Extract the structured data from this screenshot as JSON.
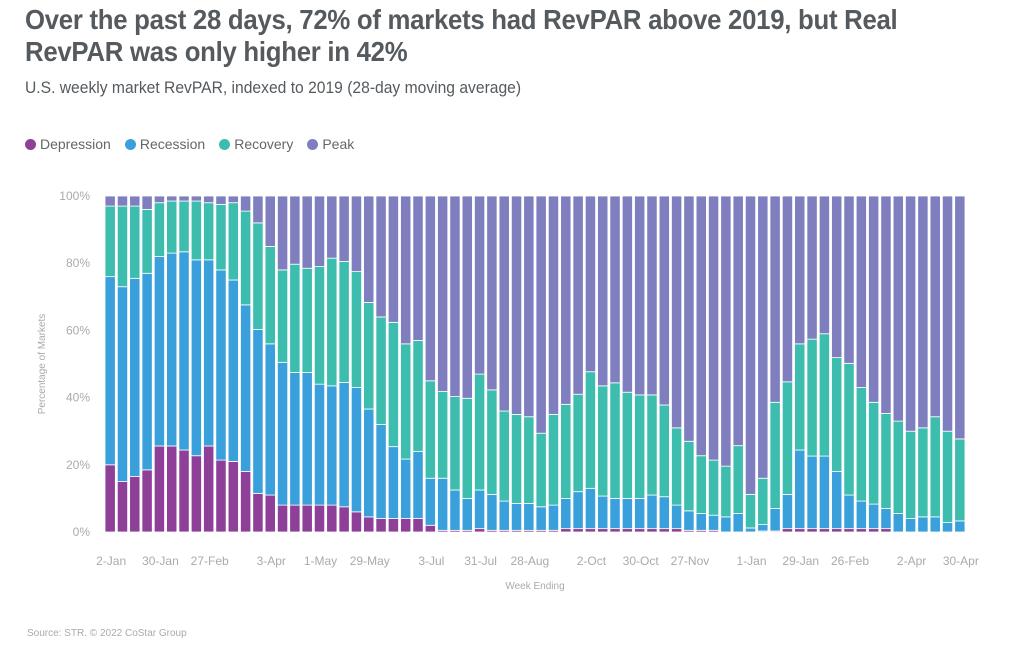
{
  "chart_data": {
    "type": "bar",
    "stacked": true,
    "title": "Over the past 28 days, 72% of markets had RevPAR above 2019, but Real RevPAR was only higher in 42%",
    "subtitle": "U.S. weekly market RevPAR, indexed to 2019 (28-day moving average)",
    "xlabel": "Week Ending",
    "ylabel": "Percentage of Markets",
    "ylim": [
      0,
      100
    ],
    "yticks": [
      "0%",
      "20%",
      "40%",
      "60%",
      "80%",
      "100%"
    ],
    "legend_position": "top-left",
    "source": "Source: STR. © 2022 CoStar Group",
    "categories": [
      "2-Jan",
      "9-Jan",
      "16-Jan",
      "23-Jan",
      "30-Jan",
      "6-Feb",
      "13-Feb",
      "20-Feb",
      "27-Feb",
      "6-Mar",
      "13-Mar",
      "20-Mar",
      "27-Mar",
      "3-Apr",
      "10-Apr",
      "17-Apr",
      "24-Apr",
      "1-May",
      "8-May",
      "15-May",
      "22-May",
      "29-May",
      "5-Jun",
      "12-Jun",
      "19-Jun",
      "26-Jun",
      "3-Jul",
      "10-Jul",
      "17-Jul",
      "24-Jul",
      "31-Jul",
      "7-Aug",
      "14-Aug",
      "21-Aug",
      "28-Aug",
      "4-Sep",
      "11-Sep",
      "18-Sep",
      "25-Sep",
      "2-Oct",
      "9-Oct",
      "16-Oct",
      "23-Oct",
      "30-Oct",
      "6-Nov",
      "13-Nov",
      "20-Nov",
      "27-Nov",
      "4-Dec",
      "11-Dec",
      "18-Dec",
      "25-Dec",
      "1-Jan",
      "8-Jan",
      "15-Jan",
      "22-Jan",
      "29-Jan",
      "5-Feb",
      "12-Feb",
      "19-Feb",
      "26-Feb",
      "5-Mar",
      "12-Mar",
      "19-Mar",
      "26-Mar",
      "2-Apr",
      "9-Apr",
      "16-Apr",
      "23-Apr",
      "30-Apr"
    ],
    "xtick_labels": [
      "2-Jan",
      "30-Jan",
      "27-Feb",
      "3-Apr",
      "1-May",
      "29-May",
      "3-Jul",
      "31-Jul",
      "28-Aug",
      "2-Oct",
      "30-Oct",
      "27-Nov",
      "1-Jan",
      "29-Jan",
      "26-Feb",
      "2-Apr",
      "30-Apr"
    ],
    "series": [
      {
        "name": "Depression",
        "color": "#8e3f97",
        "values": [
          20,
          15,
          16.5,
          18.5,
          25.6,
          25.6,
          24.4,
          22.7,
          25.6,
          21.4,
          21,
          18,
          11.5,
          11,
          8,
          8,
          8,
          8,
          8,
          7.5,
          6,
          4.5,
          4,
          4,
          4,
          4,
          2,
          0.5,
          0.5,
          0.5,
          1,
          0.5,
          0.5,
          0.5,
          0.5,
          0.5,
          0.5,
          1,
          1,
          1,
          1,
          1,
          1,
          1,
          1,
          1,
          1,
          0.5,
          0.5,
          0.5,
          0,
          0,
          0,
          0.3,
          0.3,
          1,
          1,
          1,
          1,
          1,
          1,
          1,
          1,
          1,
          0,
          0,
          0,
          0,
          0,
          0
        ]
      },
      {
        "name": "Recession",
        "color": "#3aa0dc",
        "values": [
          56,
          58,
          59,
          58.5,
          56.4,
          57.4,
          59,
          58.3,
          55.4,
          56.6,
          54,
          49.6,
          48.8,
          45,
          42.5,
          39.5,
          39.5,
          36,
          35.5,
          37,
          37,
          32.1,
          28,
          21.4,
          17.7,
          20,
          14,
          15.5,
          12,
          9.5,
          11.5,
          10.7,
          8.7,
          8,
          8,
          7,
          7.5,
          9,
          11,
          12,
          9.7,
          9,
          9,
          9,
          10,
          9.5,
          7,
          5.8,
          5,
          4.5,
          4.5,
          5.5,
          1.2,
          1.9,
          6.7,
          10.2,
          23.4,
          21.6,
          21.6,
          17,
          10,
          8.2,
          7.3,
          6,
          5.5,
          4,
          4.5,
          4.5,
          2.8,
          3.3
        ]
      },
      {
        "name": "Recovery",
        "color": "#3dbdae",
        "values": [
          21,
          24,
          21.5,
          19,
          16,
          15.5,
          15.1,
          17.5,
          17,
          19.5,
          23,
          27.9,
          31.7,
          29,
          27.5,
          32.2,
          31,
          35,
          38,
          36,
          34.5,
          31.7,
          32,
          37,
          34.3,
          33,
          29,
          25.8,
          27.8,
          29.8,
          34.5,
          31.1,
          26.8,
          26.5,
          25.8,
          21.9,
          27,
          28,
          29,
          34.7,
          32.8,
          34.4,
          31.6,
          30.8,
          29.8,
          27.3,
          23,
          20.7,
          17.2,
          16.4,
          15.1,
          20.2,
          10,
          13.8,
          31.6,
          33.5,
          31.6,
          34.8,
          36.4,
          33.9,
          39.2,
          33.8,
          30.3,
          28.3,
          27.5,
          26,
          26.5,
          29.8,
          27.2,
          24.4
        ]
      },
      {
        "name": "Peak",
        "color": "#7f7fc0",
        "values": [
          3,
          3,
          3,
          4,
          2,
          1.5,
          1.5,
          1.5,
          2,
          2.5,
          2,
          4.5,
          8,
          15,
          22,
          20.3,
          21.5,
          21,
          18.5,
          19.5,
          22.5,
          31.7,
          36,
          37.6,
          44,
          43,
          55,
          58.2,
          59.7,
          60.2,
          53,
          57.7,
          64,
          65,
          65.7,
          70.6,
          65,
          62,
          59,
          52.3,
          56.5,
          55.6,
          58.4,
          59.2,
          59.2,
          62.2,
          69,
          73,
          77.3,
          78.6,
          80.4,
          74.3,
          88.8,
          84,
          61.4,
          55.3,
          44,
          42.6,
          41,
          48.1,
          49.8,
          57,
          61.4,
          64.7,
          67,
          70,
          69,
          65.7,
          70,
          72.3
        ]
      }
    ]
  }
}
